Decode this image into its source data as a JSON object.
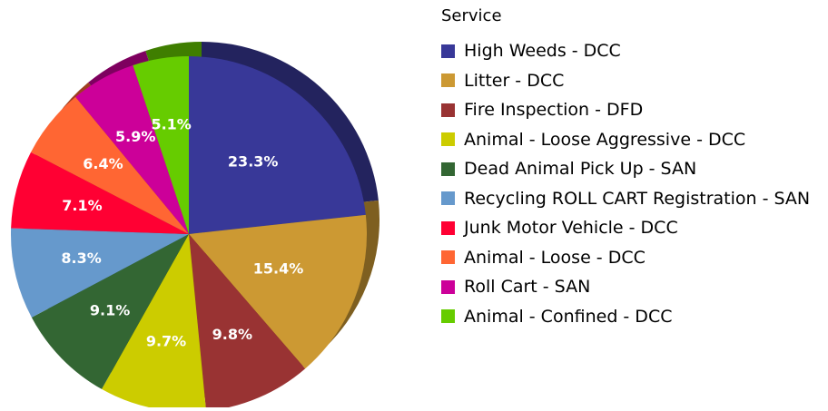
{
  "chart_data": {
    "type": "pie",
    "legend_title": "Service",
    "legend_position": "right",
    "categories": [
      "High Weeds - DCC",
      "Litter -  DCC",
      "Fire Inspection - DFD",
      "Animal - Loose Aggressive - DCC",
      "Dead Animal Pick Up - SAN",
      "Recycling ROLL CART Registration - SAN",
      "Junk Motor Vehicle - DCC",
      "Animal - Loose - DCC",
      "Roll Cart - SAN",
      "Animal - Confined - DCC"
    ],
    "values": [
      23.3,
      15.4,
      9.8,
      9.7,
      9.1,
      8.3,
      7.1,
      6.4,
      5.9,
      5.1
    ],
    "data_labels": [
      "23.3%",
      "15.4%",
      "9.8%",
      "9.7%",
      "9.1%",
      "8.3%",
      "7.1%",
      "6.4%",
      "5.9%",
      "5.1%"
    ],
    "colors": [
      "#383898",
      "#CC9933",
      "#993333",
      "#CCCC00",
      "#336633",
      "#6699CC",
      "#FF0033",
      "#FF6633",
      "#CC0099",
      "#66CC00"
    ],
    "start_angle_deg": 90,
    "direction": "clockwise",
    "style": "3d-tilted"
  }
}
